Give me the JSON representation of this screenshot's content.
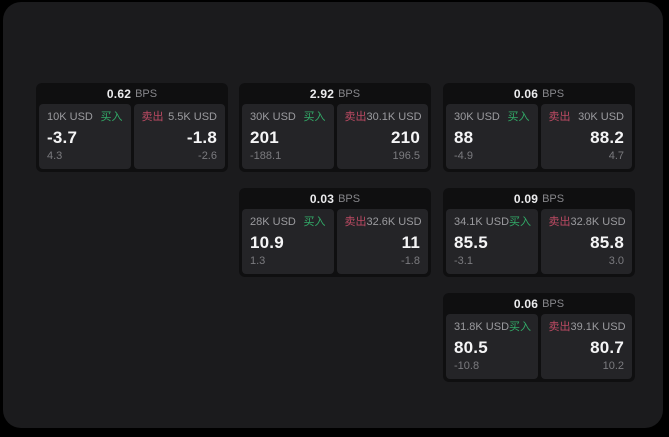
{
  "labels": {
    "buy": "买入",
    "sell": "卖出",
    "bps": "BPS"
  },
  "colors": {
    "panel_bg": "#1b1b1d",
    "card_bg": "#0f0f10",
    "tile_bg": "#242427",
    "buy_green": "#32ab68",
    "sell_red": "#bc4a63"
  },
  "cards": [
    {
      "bps": "0.62",
      "buy": {
        "size": "10K USD",
        "price": "-3.7",
        "delta": "4.3"
      },
      "sell": {
        "size": "5.5K USD",
        "price": "-1.8",
        "delta": "-2.6"
      }
    },
    {
      "bps": "2.92",
      "buy": {
        "size": "30K USD",
        "price": "201",
        "delta": "-188.1"
      },
      "sell": {
        "size": "30.1K USD",
        "price": "210",
        "delta": "196.5"
      }
    },
    {
      "bps": "0.06",
      "buy": {
        "size": "30K USD",
        "price": "88",
        "delta": "-4.9"
      },
      "sell": {
        "size": "30K USD",
        "price": "88.2",
        "delta": "4.7"
      }
    },
    {
      "bps": "0.03",
      "buy": {
        "size": "28K USD",
        "price": "10.9",
        "delta": "1.3"
      },
      "sell": {
        "size": "32.6K USD",
        "price": "11",
        "delta": "-1.8"
      }
    },
    {
      "bps": "0.09",
      "buy": {
        "size": "34.1K USD",
        "price": "85.5",
        "delta": "-3.1"
      },
      "sell": {
        "size": "32.8K USD",
        "price": "85.8",
        "delta": "3.0"
      }
    },
    {
      "bps": "0.06",
      "buy": {
        "size": "31.8K USD",
        "price": "80.5",
        "delta": "-10.8"
      },
      "sell": {
        "size": "39.1K USD",
        "price": "80.7",
        "delta": "10.2"
      }
    }
  ]
}
